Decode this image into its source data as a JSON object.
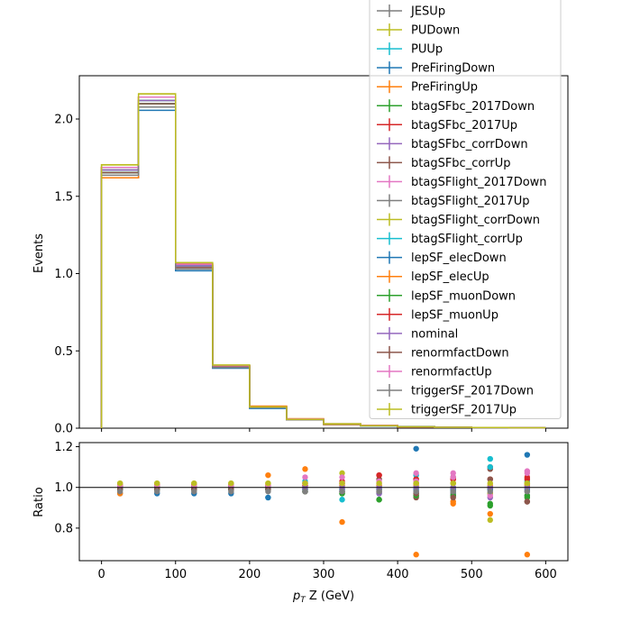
{
  "chart_data": [
    {
      "type": "line",
      "panel": "main",
      "ylabel": "Events",
      "xlim": [
        -30,
        630
      ],
      "ylim": [
        0,
        2.28
      ],
      "yticks": [
        0.0,
        0.5,
        1.0,
        1.5,
        2.0
      ],
      "ytick_labels": [
        "0.0",
        "0.5",
        "1.0",
        "1.5",
        "2.0"
      ],
      "bin_edges": [
        0,
        50,
        100,
        150,
        200,
        250,
        300,
        350,
        400,
        450,
        500,
        550,
        600
      ],
      "nominal": [
        1.67,
        2.12,
        1.05,
        0.4,
        0.135,
        0.056,
        0.027,
        0.016,
        0.009,
        0.006,
        0.004,
        0.003
      ],
      "legend_position": "upper right",
      "series": [
        {
          "name": "JESUp",
          "color": "#7f7f7f"
        },
        {
          "name": "PUDown",
          "color": "#bcbd22"
        },
        {
          "name": "PUUp",
          "color": "#17becf"
        },
        {
          "name": "PreFiringDown",
          "color": "#1f77b4"
        },
        {
          "name": "PreFiringUp",
          "color": "#ff7f0e"
        },
        {
          "name": "btagSFbc_2017Down",
          "color": "#2ca02c"
        },
        {
          "name": "btagSFbc_2017Up",
          "color": "#d62728"
        },
        {
          "name": "btagSFbc_corrDown",
          "color": "#9467bd"
        },
        {
          "name": "btagSFbc_corrUp",
          "color": "#8c564b"
        },
        {
          "name": "btagSFlight_2017Down",
          "color": "#e377c2"
        },
        {
          "name": "btagSFlight_2017Up",
          "color": "#7f7f7f"
        },
        {
          "name": "btagSFlight_corrDown",
          "color": "#bcbd22"
        },
        {
          "name": "btagSFlight_corrUp",
          "color": "#17becf"
        },
        {
          "name": "lepSF_elecDown",
          "color": "#1f77b4"
        },
        {
          "name": "lepSF_elecUp",
          "color": "#ff7f0e"
        },
        {
          "name": "lepSF_muonDown",
          "color": "#2ca02c"
        },
        {
          "name": "lepSF_muonUp",
          "color": "#d62728"
        },
        {
          "name": "nominal",
          "color": "#9467bd"
        },
        {
          "name": "renormfactDown",
          "color": "#8c564b"
        },
        {
          "name": "renormfactUp",
          "color": "#e377c2"
        },
        {
          "name": "triggerSF_2017Down",
          "color": "#7f7f7f"
        },
        {
          "name": "triggerSF_2017Up",
          "color": "#bcbd22"
        }
      ]
    },
    {
      "type": "scatter",
      "panel": "ratio",
      "xlabel": "p_T Z (GeV)",
      "ylabel": "Ratio",
      "xlim": [
        -30,
        630
      ],
      "ylim": [
        0.64,
        1.22
      ],
      "xticks": [
        0,
        100,
        200,
        300,
        400,
        500,
        600
      ],
      "xtick_labels": [
        "0",
        "100",
        "200",
        "300",
        "400",
        "500",
        "600"
      ],
      "yticks": [
        0.8,
        1.0,
        1.2
      ],
      "ytick_labels": [
        "0.8",
        "1.0",
        "1.2"
      ],
      "reference_line": 1.0,
      "x": [
        25,
        75,
        125,
        175,
        225,
        275,
        325,
        375,
        425,
        475,
        525,
        575
      ],
      "ratios": [
        [
          1.01,
          1.01,
          1.01,
          1.01,
          1.0,
          1.0,
          0.99,
          0.99,
          0.98,
          0.99,
          0.99,
          1.01
        ],
        [
          1.02,
          1.02,
          1.02,
          1.02,
          1.02,
          1.02,
          1.07,
          1.01,
          1.02,
          1.02,
          0.84,
          1.02
        ],
        [
          1.0,
          1.0,
          1.0,
          1.0,
          0.95,
          1.03,
          0.94,
          1.0,
          1.06,
          0.97,
          1.14,
          1.03
        ],
        [
          0.97,
          0.97,
          0.97,
          0.97,
          0.95,
          0.98,
          0.98,
          0.97,
          1.19,
          0.98,
          1.0,
          1.16
        ],
        [
          0.97,
          1.01,
          1.01,
          1.01,
          1.06,
          1.09,
          0.83,
          0.99,
          0.67,
          0.92,
          0.87,
          0.67
        ],
        [
          0.99,
          0.99,
          0.99,
          0.99,
          0.99,
          0.98,
          0.97,
          0.94,
          0.96,
          0.96,
          0.91,
          0.95
        ],
        [
          1.01,
          1.01,
          1.01,
          1.01,
          1.01,
          1.02,
          1.03,
          1.06,
          1.04,
          1.04,
          1.1,
          1.04
        ],
        [
          0.99,
          0.99,
          0.99,
          0.99,
          0.99,
          0.99,
          0.98,
          0.97,
          0.98,
          0.96,
          0.95,
          0.98
        ],
        [
          1.0,
          1.0,
          1.0,
          1.0,
          1.0,
          1.0,
          1.01,
          1.04,
          0.95,
          1.05,
          1.09,
          0.93
        ],
        [
          1.0,
          1.0,
          1.0,
          1.0,
          1.0,
          1.05,
          1.05,
          1.03,
          1.07,
          1.07,
          1.0,
          1.08
        ],
        [
          1.0,
          1.0,
          1.0,
          1.0,
          1.0,
          0.99,
          0.98,
          0.98,
          0.97,
          0.97,
          0.97,
          0.96
        ],
        [
          1.0,
          1.0,
          1.0,
          1.0,
          1.0,
          1.0,
          1.02,
          1.01,
          1.02,
          1.02,
          0.97,
          1.02
        ],
        [
          1.0,
          1.0,
          1.0,
          1.0,
          1.0,
          1.0,
          1.0,
          1.0,
          1.0,
          1.0,
          1.1,
          1.0
        ],
        [
          0.99,
          0.99,
          0.99,
          0.99,
          0.99,
          0.99,
          0.99,
          0.99,
          0.99,
          0.99,
          0.99,
          0.99
        ],
        [
          1.01,
          1.01,
          1.01,
          1.01,
          1.01,
          1.01,
          1.01,
          1.01,
          1.01,
          0.93,
          1.01,
          1.01
        ],
        [
          0.99,
          0.99,
          0.99,
          0.99,
          0.99,
          0.98,
          0.97,
          0.94,
          0.96,
          0.96,
          0.92,
          0.96
        ],
        [
          1.01,
          1.01,
          1.01,
          1.01,
          1.01,
          1.01,
          1.02,
          1.06,
          1.04,
          1.04,
          1.04,
          1.05
        ],
        [
          1.0,
          1.0,
          1.0,
          1.0,
          1.0,
          1.0,
          1.0,
          1.0,
          1.0,
          1.0,
          1.0,
          1.0
        ],
        [
          0.99,
          0.99,
          0.99,
          0.99,
          0.99,
          0.98,
          0.98,
          0.98,
          0.97,
          0.95,
          1.04,
          0.93
        ],
        [
          1.01,
          1.01,
          1.01,
          1.01,
          1.01,
          1.02,
          1.02,
          1.02,
          1.03,
          1.05,
          0.96,
          1.07
        ],
        [
          0.98,
          0.98,
          0.98,
          0.98,
          0.98,
          0.98,
          0.98,
          0.98,
          0.98,
          0.98,
          0.98,
          0.98
        ],
        [
          1.02,
          1.02,
          1.02,
          1.02,
          1.02,
          1.02,
          1.02,
          1.02,
          1.02,
          1.02,
          1.02,
          1.02
        ]
      ]
    }
  ]
}
